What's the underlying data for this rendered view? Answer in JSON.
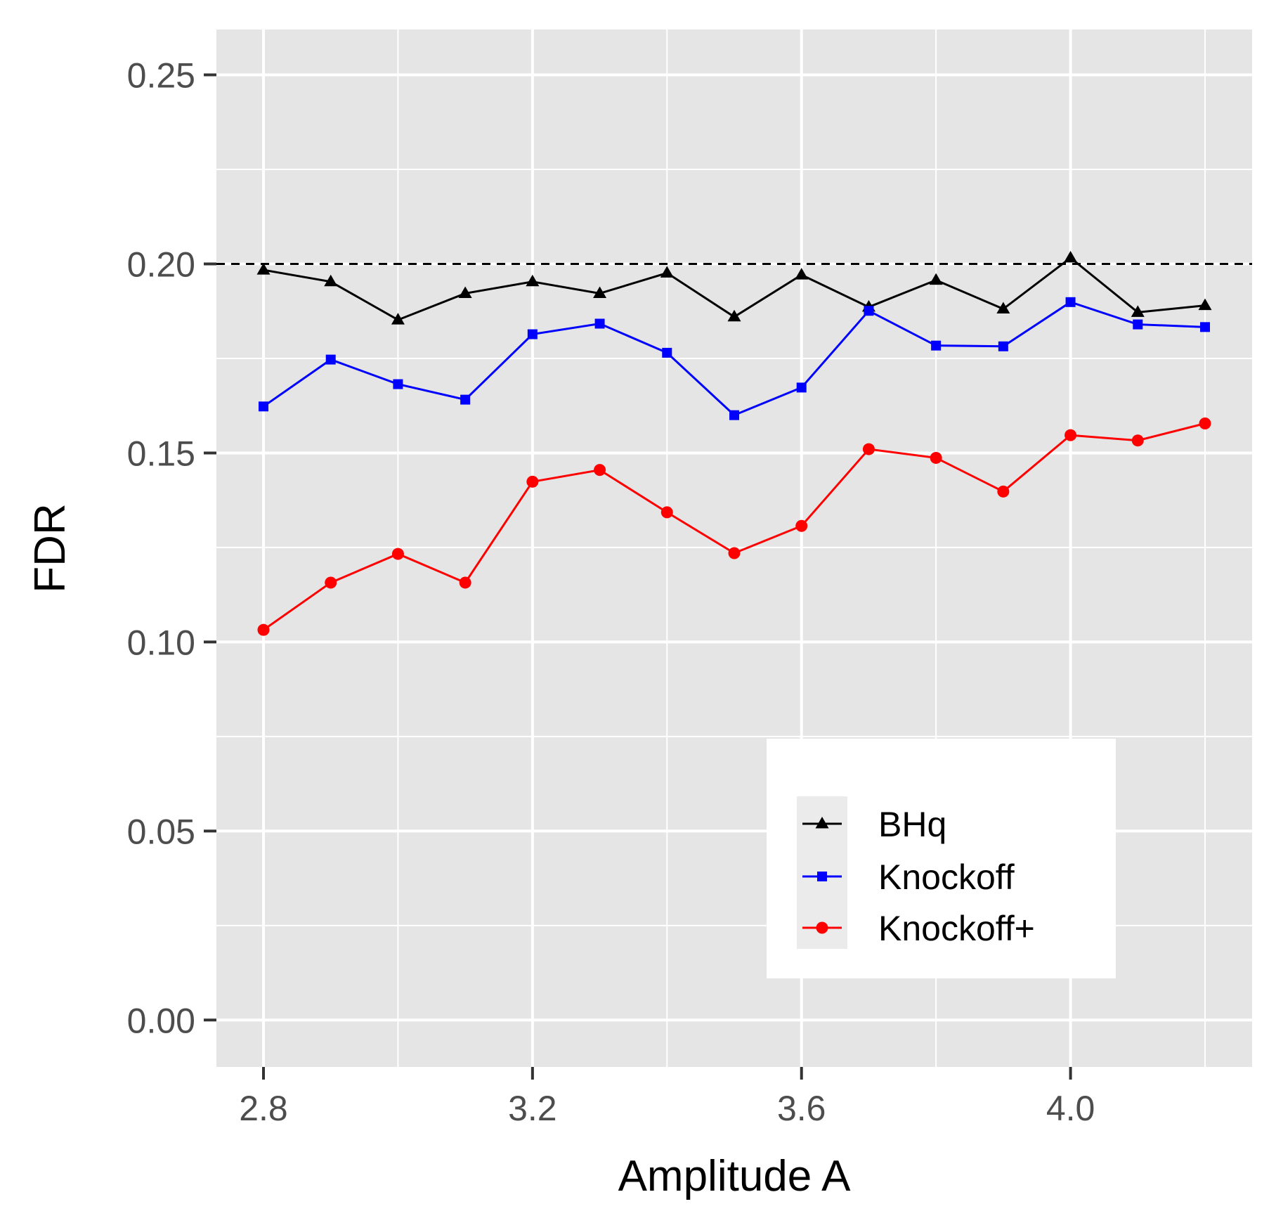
{
  "chart_data": {
    "type": "line",
    "xlabel": "Amplitude A",
    "ylabel": "FDR",
    "x": [
      2.8,
      2.9,
      3.0,
      3.1,
      3.2,
      3.3,
      3.4,
      3.5,
      3.6,
      3.7,
      3.8,
      3.9,
      4.0,
      4.1,
      4.2
    ],
    "xlim": [
      2.73,
      4.27
    ],
    "ylim": [
      -0.0124,
      0.262
    ],
    "xticks": [
      2.8,
      3.2,
      3.6,
      4.0
    ],
    "xtick_labels": [
      "2.8",
      "3.2",
      "3.6",
      "4.0"
    ],
    "yticks": [
      0.0,
      0.05,
      0.1,
      0.15,
      0.2,
      0.25
    ],
    "ytick_labels": [
      "0.00",
      "0.05",
      "0.10",
      "0.15",
      "0.20",
      "0.25"
    ],
    "grid": true,
    "reference_line": {
      "y": 0.2,
      "style": "dashed",
      "color": "#000000"
    },
    "legend_position": "bottom-right",
    "series": [
      {
        "name": "BHq",
        "color": "#000000",
        "marker": "triangle",
        "values": [
          0.1984,
          0.1953,
          0.1852,
          0.1922,
          0.1953,
          0.1922,
          0.1976,
          0.186,
          0.1971,
          0.1886,
          0.1957,
          0.1881,
          0.2016,
          0.1872,
          0.189
        ]
      },
      {
        "name": "Knockoff",
        "color": "#0000ff",
        "marker": "square",
        "values": [
          0.1623,
          0.1747,
          0.1682,
          0.1641,
          0.1814,
          0.1842,
          0.1765,
          0.16,
          0.1673,
          0.1876,
          0.1784,
          0.1782,
          0.1899,
          0.184,
          0.1833
        ]
      },
      {
        "name": "Knockoff+",
        "color": "#ff0000",
        "marker": "circle",
        "values": [
          0.1032,
          0.1157,
          0.1233,
          0.1157,
          0.1424,
          0.1455,
          0.1343,
          0.1235,
          0.1307,
          0.151,
          0.1487,
          0.1398,
          0.1547,
          0.1533,
          0.1578
        ]
      }
    ]
  }
}
